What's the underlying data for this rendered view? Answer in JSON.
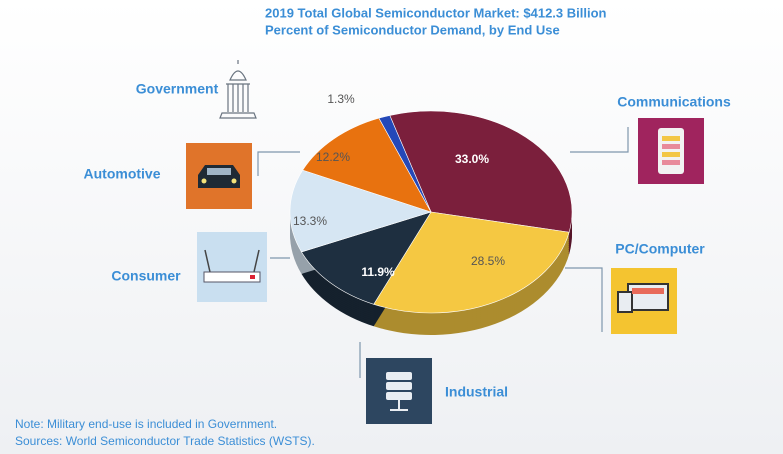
{
  "chart_data": {
    "type": "pie",
    "title": "2019 Total Global Semiconductor Market: $412.3 Billion",
    "subtitle": "Percent of Semiconductor Demand, by End Use",
    "categories": [
      "Communications",
      "PC/Computer",
      "Industrial",
      "Consumer",
      "Automotive",
      "Government"
    ],
    "values": [
      33.0,
      28.5,
      11.9,
      13.3,
      12.2,
      1.3
    ],
    "value_labels": [
      "33.0%",
      "28.5%",
      "11.9%",
      "13.3%",
      "12.2%",
      "1.3%"
    ],
    "colors": [
      "#7b1f3c",
      "#f5c842",
      "#1e2f40",
      "#d6e6f3",
      "#e8720f",
      "#2448b8"
    ],
    "notes": [
      "Note: Military end-use is included in Government.",
      "Sources: World Semiconductor Trade Statistics (WSTS)."
    ]
  }
}
